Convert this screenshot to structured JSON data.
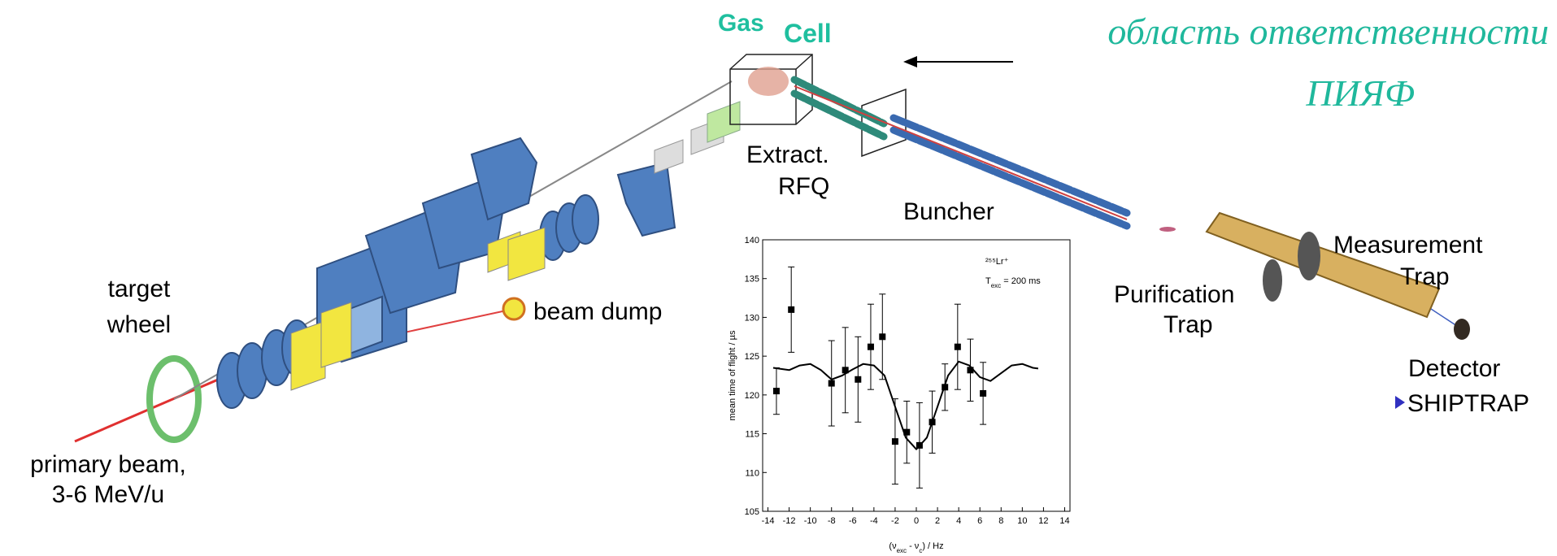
{
  "labels": {
    "gas": "Gas",
    "cell": "Cell",
    "responsibility_line1": "область ответственности",
    "responsibility_line2": "ПИЯФ",
    "extract": "Extract.",
    "rfq": "RFQ",
    "buncher": "Buncher",
    "measurement": "Measurement",
    "measurement_trap": "Trap",
    "purification": "Purification",
    "purification_trap": "Trap",
    "detector": "Detector",
    "shiptrap": "SHIPTRAP",
    "target": "target",
    "wheel": "wheel",
    "beam_dump": "beam dump",
    "primary_beam": "primary beam,",
    "energy": "3-6 MeV/u"
  },
  "chart_data": {
    "type": "scatter",
    "ylabel": "mean time of flight / µs",
    "xlabel": {
      "parts": [
        "(ν",
        "exc",
        " - ν",
        "c",
        ") / Hz"
      ],
      "subscript": [
        false,
        true,
        false,
        true,
        false
      ]
    },
    "annotation_isotope": "²⁵⁵Lr⁺",
    "annotation_time": {
      "parts": [
        "T",
        "exc",
        " = 200 ms"
      ],
      "subscript": [
        false,
        true,
        false
      ]
    },
    "xlim": [
      -14.5,
      14.5
    ],
    "ylim": [
      105,
      140
    ],
    "xticks": [
      -14,
      -12,
      -10,
      -8,
      -6,
      -4,
      -2,
      0,
      2,
      4,
      6,
      8,
      10,
      12,
      14
    ],
    "yticks": [
      105,
      110,
      115,
      120,
      125,
      130,
      135,
      140
    ],
    "series": [
      {
        "style": "points",
        "color": "#000000",
        "x": [
          -13.2,
          -11.8,
          -8,
          -6.7,
          -5.5,
          -4.3,
          -3.2,
          -2,
          -0.9,
          0.3,
          1.5,
          2.7,
          3.9,
          5.1,
          6.3
        ],
        "values": [
          120.5,
          131,
          121.5,
          123.2,
          122,
          126.2,
          127.5,
          114,
          115.2,
          113.5,
          116.5,
          121,
          126.2,
          123.2,
          120.2
        ],
        "errors": [
          3,
          5.5,
          5.5,
          5.5,
          5.5,
          5.5,
          5.5,
          5.5,
          4,
          5.5,
          4,
          3,
          5.5,
          4,
          4
        ]
      },
      {
        "style": "line",
        "color": "#000000",
        "x": [
          -13.5,
          -12,
          -11,
          -10,
          -9,
          -8,
          -7,
          -6,
          -5,
          -4,
          -3,
          -2,
          -1,
          0,
          1,
          2,
          3,
          4,
          5,
          6,
          7,
          8,
          9,
          10,
          11,
          11.5
        ],
        "values": [
          123.5,
          123.2,
          123.8,
          124,
          123.2,
          122,
          122.5,
          123.3,
          124,
          123.8,
          122.5,
          118.5,
          114.5,
          113,
          114.5,
          118.5,
          122.5,
          124.3,
          123.8,
          122.3,
          121.8,
          122.8,
          123.8,
          124,
          123.5,
          123.4
        ]
      }
    ]
  }
}
